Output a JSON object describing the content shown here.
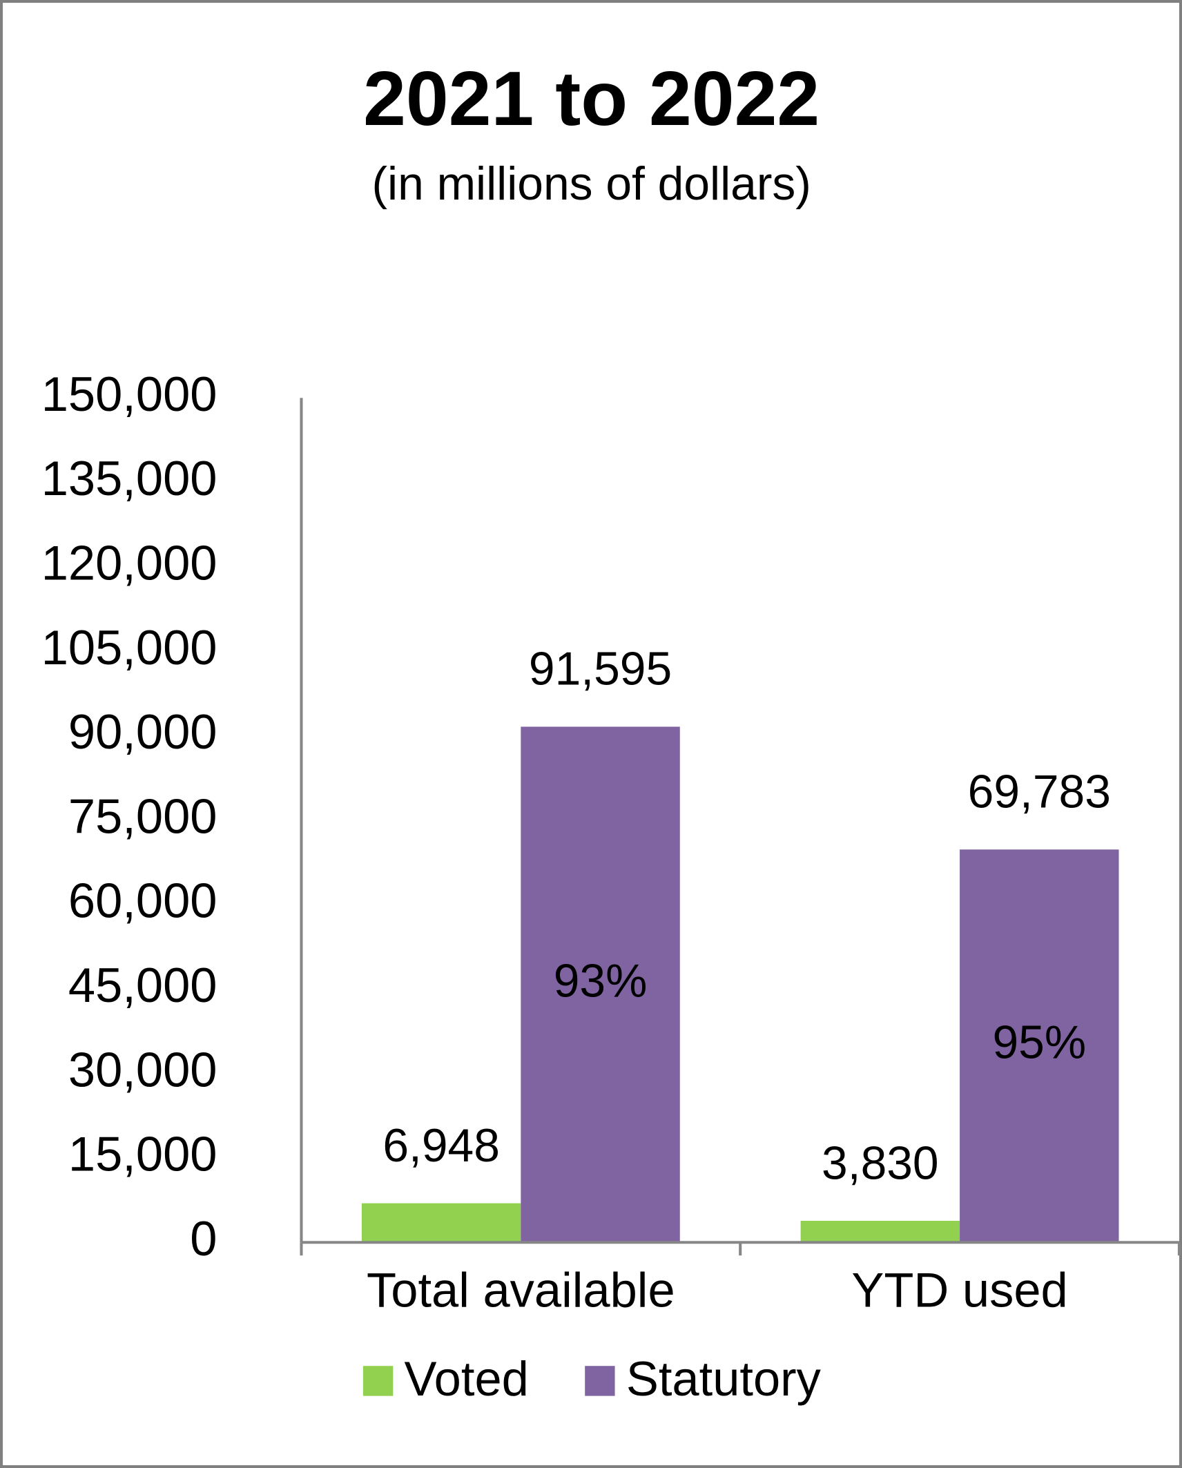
{
  "chart_data": {
    "type": "bar",
    "title": "2021 to 2022",
    "subtitle": "(in millions of dollars)",
    "categories": [
      "Total available",
      "YTD used"
    ],
    "series": [
      {
        "name": "Voted",
        "color": "#92d050",
        "values": [
          6948,
          3830
        ],
        "value_labels": [
          "6,948",
          "3,830"
        ]
      },
      {
        "name": "Statutory",
        "color": "#8064a2",
        "values": [
          91595,
          69783
        ],
        "value_labels": [
          "91,595",
          "69,783"
        ],
        "share_labels": [
          "93%",
          "95%"
        ]
      }
    ],
    "ylim": [
      0,
      150000
    ],
    "yticks": [
      0,
      {
        "value": 15000,
        "label": "15,000"
      },
      {
        "value": 30000,
        "label": "30,000"
      },
      {
        "value": 45000,
        "label": "45,000"
      },
      {
        "value": 60000,
        "label": "60,000"
      },
      {
        "value": 75000,
        "label": "75,000"
      },
      {
        "value": 90000,
        "label": "90,000"
      },
      {
        "value": 105000,
        "label": "105,000"
      },
      {
        "value": 120000,
        "label": "120,000"
      },
      {
        "value": 135000,
        "label": "135,000"
      },
      {
        "value": 150000,
        "label": "150,000"
      }
    ],
    "grid": false,
    "legend": "bottom"
  }
}
